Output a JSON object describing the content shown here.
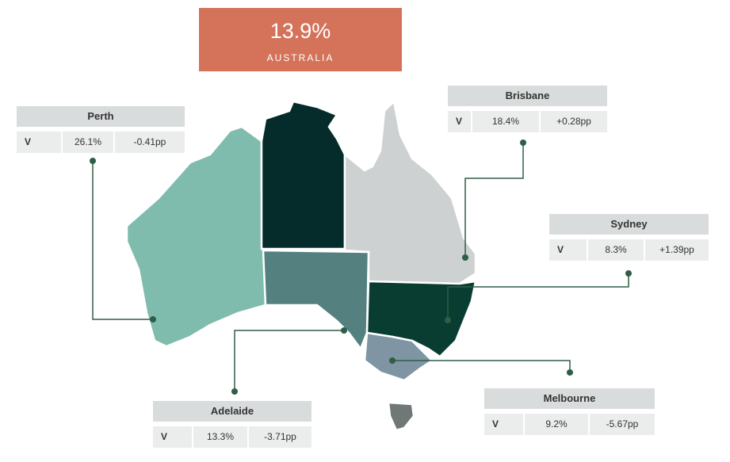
{
  "header": {
    "value": "13.9%",
    "label": "AUSTRALIA"
  },
  "cities": [
    {
      "name": "Perth",
      "code": "V",
      "value": "26.1%",
      "change": "-0.41pp"
    },
    {
      "name": "Brisbane",
      "code": "V",
      "value": "18.4%",
      "change": "+0.28pp"
    },
    {
      "name": "Sydney",
      "code": "V",
      "value": "8.3%",
      "change": "+1.39pp"
    },
    {
      "name": "Adelaide",
      "code": "V",
      "value": "13.3%",
      "change": "-3.71pp"
    },
    {
      "name": "Melbourne",
      "code": "V",
      "value": "9.2%",
      "change": "-5.67pp"
    }
  ]
}
